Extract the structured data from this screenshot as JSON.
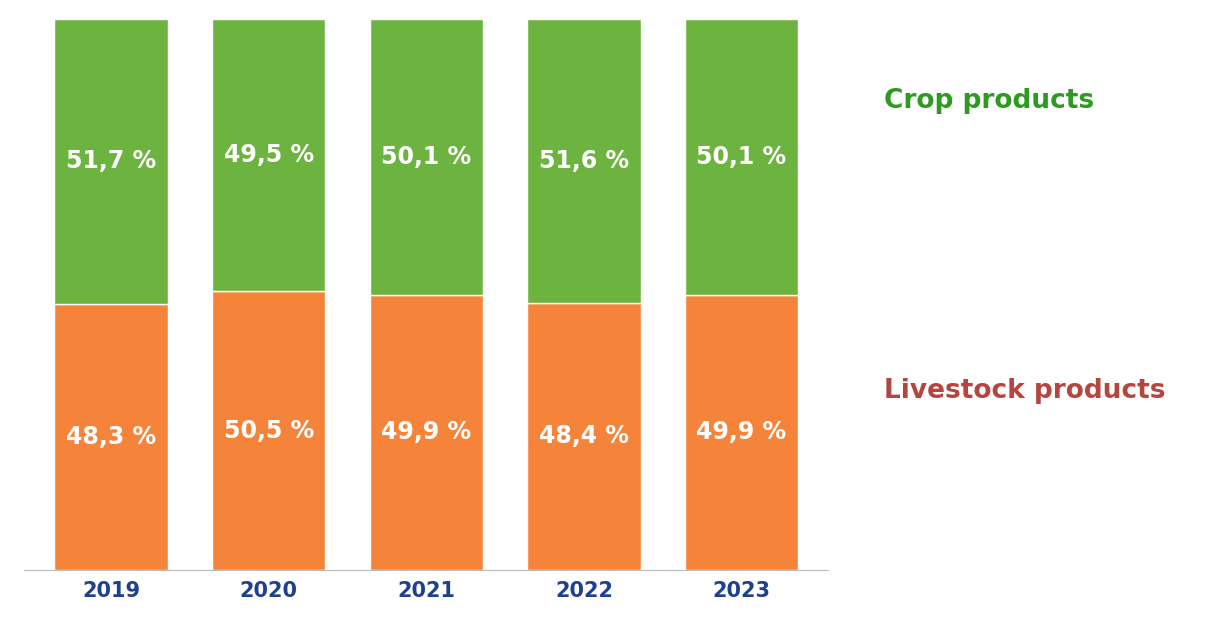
{
  "chart_data": {
    "type": "bar",
    "stacked": true,
    "categories": [
      "2019",
      "2020",
      "2021",
      "2022",
      "2023"
    ],
    "series": [
      {
        "name": "Livestock products",
        "color": "#f5843a",
        "values": [
          48.3,
          50.5,
          49.9,
          48.4,
          49.9
        ],
        "value_labels": [
          "48,3 %",
          "50,5 %",
          "49,9 %",
          "48,4 %",
          "49,9 %"
        ]
      },
      {
        "name": "Crop products",
        "color": "#6db33f",
        "values": [
          51.7,
          49.5,
          50.1,
          51.6,
          50.1
        ],
        "value_labels": [
          "51,7 %",
          "49,5 %",
          "50,1 %",
          "51,6 %",
          "50,1 %"
        ]
      }
    ],
    "ylim": [
      0,
      100
    ],
    "data_labels": true,
    "tick_labels": "x"
  }
}
